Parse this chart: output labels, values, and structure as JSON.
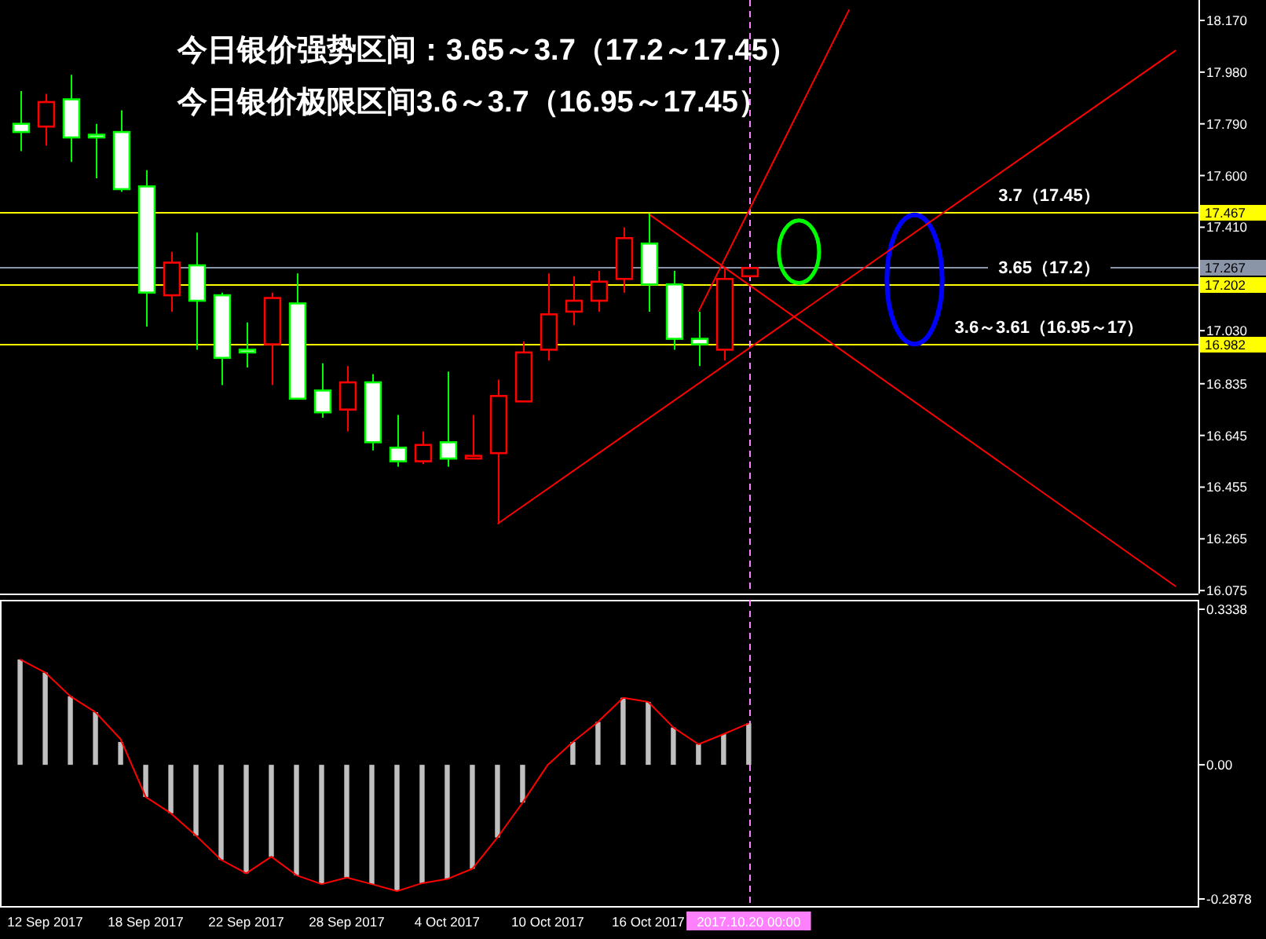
{
  "chart_data": [
    {
      "type": "candlestick",
      "title": "今日银价强势区间：3.65～3.7（17.2～17.45）",
      "subtitle": "今日银价极限区间3.6～3.7（16.95～17.45）",
      "categories": [
        null,
        "12 Sep 2017",
        null,
        null,
        null,
        "18 Sep 2017",
        null,
        null,
        null,
        "22 Sep 2017",
        null,
        null,
        null,
        "28 Sep 2017",
        null,
        null,
        null,
        "4 Oct 2017",
        null,
        null,
        null,
        "10 Oct 2017",
        null,
        null,
        null,
        "16 Oct 2017",
        null,
        null,
        null,
        "2017.10.20 00:00",
        null,
        null,
        null,
        null,
        null,
        null,
        null,
        null,
        null,
        null,
        null,
        null,
        null,
        null,
        null,
        null,
        null
      ],
      "ohlc": [
        [
          17.79,
          17.91,
          17.69,
          17.76
        ],
        [
          17.78,
          17.9,
          17.71,
          17.87
        ],
        [
          17.88,
          17.97,
          17.65,
          17.74
        ],
        [
          17.75,
          17.79,
          17.59,
          17.74
        ],
        [
          17.76,
          17.84,
          17.54,
          17.55
        ],
        [
          17.56,
          17.62,
          17.045,
          17.17
        ],
        [
          17.16,
          17.32,
          17.1,
          17.28
        ],
        [
          17.27,
          17.39,
          16.96,
          17.14
        ],
        [
          17.16,
          17.17,
          16.83,
          16.93
        ],
        [
          16.96,
          17.06,
          16.895,
          16.95
        ],
        [
          16.98,
          17.17,
          16.83,
          17.15
        ],
        [
          17.13,
          17.24,
          16.78,
          16.78
        ],
        [
          16.81,
          16.91,
          16.71,
          16.73
        ],
        [
          16.74,
          16.9,
          16.66,
          16.84
        ],
        [
          16.84,
          16.87,
          16.59,
          16.62
        ],
        [
          16.6,
          16.72,
          16.53,
          16.55
        ],
        [
          16.55,
          16.66,
          16.54,
          16.61
        ],
        [
          16.62,
          16.88,
          16.53,
          16.56
        ],
        [
          16.56,
          16.72,
          16.56,
          16.57
        ],
        [
          16.58,
          16.85,
          16.32,
          16.79
        ],
        [
          16.77,
          16.99,
          16.77,
          16.95
        ],
        [
          16.96,
          17.24,
          16.92,
          17.09
        ],
        [
          17.1,
          17.23,
          17.05,
          17.14
        ],
        [
          17.14,
          17.25,
          17.1,
          17.21
        ],
        [
          17.22,
          17.41,
          17.17,
          17.37
        ],
        [
          17.35,
          17.46,
          17.1,
          17.2
        ],
        [
          17.2,
          17.25,
          16.96,
          17.0
        ],
        [
          17.0,
          17.1,
          16.9,
          16.98
        ],
        [
          16.96,
          17.26,
          16.92,
          17.22
        ],
        [
          17.23,
          17.26,
          17.23,
          17.26
        ],
        null,
        null,
        null,
        null,
        null,
        null,
        null,
        null,
        null,
        null,
        null,
        null,
        null,
        null,
        null,
        null,
        null
      ],
      "colors": [
        "#00ff00",
        "#ff0000",
        "#00ff00",
        "#00ff00",
        "#00ff00",
        "#00ff00",
        "#ff0000",
        "#00ff00",
        "#00ff00",
        "#00ff00",
        "#ff0000",
        "#00ff00",
        "#00ff00",
        "#ff0000",
        "#00ff00",
        "#00ff00",
        "#ff0000",
        "#00ff00",
        "#ff0000",
        "#ff0000",
        "#ff0000",
        "#ff0000",
        "#ff0000",
        "#ff0000",
        "#ff0000",
        "#00ff00",
        "#00ff00",
        "#00ff00",
        "#ff0000",
        "#ff0000",
        null,
        null,
        null,
        null,
        null,
        null,
        null,
        null,
        null,
        null,
        null,
        null,
        null,
        null,
        null,
        null,
        null
      ],
      "series": [
        {
          "type": "line",
          "color": "#ff0000",
          "values": [
            null,
            null,
            null,
            null,
            null,
            null,
            null,
            null,
            null,
            null,
            null,
            null,
            null,
            null,
            null,
            null,
            null,
            null,
            null,
            16.32,
            null,
            null,
            null,
            null,
            null,
            null,
            null,
            null,
            null,
            null,
            null,
            null,
            null,
            null,
            null,
            null,
            null,
            null,
            null,
            null,
            null,
            null,
            null,
            null,
            null,
            null,
            18.06
          ]
        },
        {
          "type": "line",
          "color": "#ff0000",
          "values": [
            null,
            null,
            null,
            null,
            null,
            null,
            null,
            null,
            null,
            null,
            null,
            null,
            null,
            null,
            null,
            null,
            null,
            null,
            null,
            null,
            null,
            null,
            null,
            null,
            null,
            null,
            null,
            17.1,
            null,
            null,
            null,
            null,
            null,
            18.21,
            null,
            null,
            null,
            null,
            null,
            null,
            null,
            null,
            null,
            null,
            null,
            null,
            null
          ]
        },
        {
          "type": "line",
          "color": "#ff0000",
          "values": [
            null,
            null,
            null,
            null,
            null,
            null,
            null,
            null,
            null,
            null,
            null,
            null,
            null,
            null,
            null,
            null,
            null,
            null,
            null,
            null,
            null,
            null,
            null,
            null,
            null,
            17.46,
            null,
            null,
            null,
            null,
            null,
            null,
            null,
            null,
            null,
            null,
            null,
            null,
            null,
            null,
            null,
            null,
            null,
            null,
            null,
            null,
            16.09
          ]
        }
      ],
      "ylim": [
        16.064,
        18.245
      ],
      "yticks": [
        {
          "value": 18.17,
          "label": "18.170"
        },
        {
          "value": 17.98,
          "label": "17.980"
        },
        {
          "value": 17.79,
          "label": "17.790"
        },
        {
          "value": 17.6,
          "label": "17.600"
        },
        {
          "value": 17.41,
          "label": "17.410"
        },
        {
          "value": 17.03,
          "label": "17.030"
        },
        16.835,
        16.645,
        16.455,
        16.265,
        16.075
      ],
      "ref_lines": [
        {
          "axis": "y",
          "value": 17.467,
          "label": "17.467",
          "color": "#ffff00"
        },
        {
          "axis": "y",
          "value": 17.267,
          "label": "17.267",
          "color": "#8a95a8"
        },
        {
          "axis": "y",
          "value": 17.202,
          "label": "17.202",
          "color": "#ffff00"
        },
        {
          "axis": "y",
          "value": 16.982,
          "label": "16.982",
          "color": "#ffff00"
        },
        {
          "axis": "x",
          "value": "2017.10.20 00:00",
          "color": "#ff80ff",
          "line_style": "dashed"
        }
      ],
      "annotations": [
        {
          "text": "3.7（17.45）",
          "y": 17.467
        },
        {
          "text": "3.65（17.2）",
          "y": 17.202
        },
        {
          "text": "3.6～3.61（16.95～17）",
          "y": 16.982
        }
      ],
      "tick_labels": "y"
    },
    {
      "type": "bar",
      "categories": [
        null,
        "12 Sep 2017",
        null,
        null,
        null,
        "18 Sep 2017",
        null,
        null,
        null,
        "22 Sep 2017",
        null,
        null,
        null,
        "28 Sep 2017",
        null,
        null,
        null,
        "4 Oct 2017",
        null,
        null,
        null,
        "10 Oct 2017",
        null,
        null,
        null,
        "16 Oct 2017",
        null,
        null,
        null,
        "2017.10.20 00:00",
        null,
        null,
        null,
        null,
        null,
        null,
        null,
        null,
        null,
        null,
        null,
        null,
        null,
        null,
        null,
        null,
        null
      ],
      "series": [
        {
          "color": "#c0c0c0",
          "values": [
            0.226,
            0.198,
            0.147,
            0.113,
            0.049,
            -0.069,
            -0.104,
            -0.152,
            -0.204,
            -0.233,
            -0.197,
            -0.237,
            -0.256,
            -0.242,
            -0.256,
            -0.271,
            -0.254,
            -0.245,
            -0.223,
            -0.156,
            -0.081,
            null,
            0.049,
            0.092,
            0.144,
            0.135,
            0.08,
            0.044,
            0.066,
            0.089,
            null,
            null,
            null,
            null,
            null,
            null,
            null,
            null,
            null,
            null,
            null,
            null,
            null,
            null,
            null,
            null,
            null
          ]
        },
        {
          "type": "line",
          "color": "#ff0000",
          "values": [
            0.226,
            0.198,
            0.147,
            0.113,
            0.055,
            -0.069,
            -0.104,
            -0.152,
            -0.204,
            -0.233,
            -0.197,
            -0.237,
            -0.256,
            -0.242,
            -0.256,
            -0.271,
            -0.254,
            -0.245,
            -0.223,
            -0.156,
            -0.081,
            0.0,
            0.049,
            0.092,
            0.144,
            0.135,
            0.08,
            0.044,
            0.066,
            0.089,
            null,
            null,
            null,
            null,
            null,
            null,
            null,
            null,
            null,
            null,
            null,
            null,
            null,
            null,
            null,
            null,
            null
          ]
        }
      ],
      "ylim": [
        -0.303,
        0.354
      ],
      "yticks": [
        0.3338,
        {
          "value": 0,
          "label": "0.00"
        },
        -0.2878
      ],
      "ref_lines": [
        {
          "axis": "x",
          "value": "2017.10.20 00:00",
          "color": "#ff80ff",
          "line_style": "dashed"
        }
      ]
    }
  ]
}
